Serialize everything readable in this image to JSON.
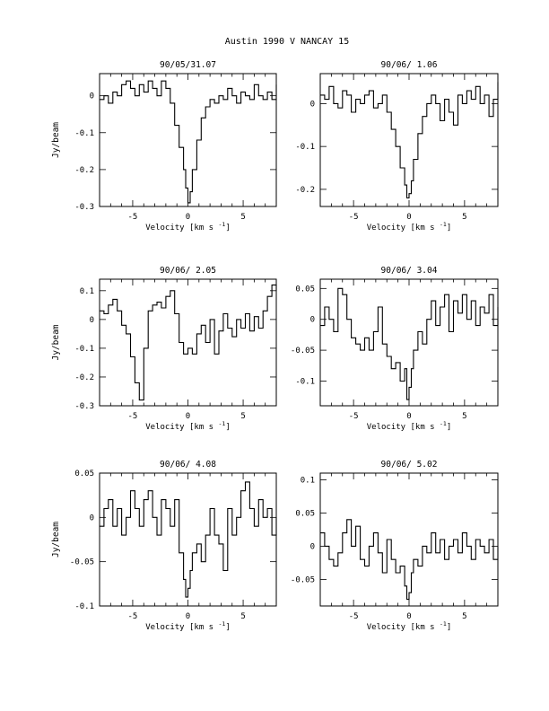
{
  "page": {
    "title": "Austin 1990 V    NANCAY     15"
  },
  "chart_data": [
    {
      "type": "line",
      "title": "90/05/31.07",
      "xlabel": "Velocity [km s",
      "xlabel_sup": "-1",
      "xlabel_end": "]",
      "ylabel": "Jy/beam",
      "xlim": [
        -8,
        8
      ],
      "ylim": [
        -0.3,
        0.06
      ],
      "xticks": [
        -5,
        0,
        5
      ],
      "yticks": [
        0,
        -0.1,
        -0.2,
        -0.3
      ],
      "ytick_labels": [
        "0",
        "-0.1",
        "-0.2",
        "-0.3"
      ],
      "series": [
        {
          "x": [
            -8.0,
            -7.6,
            -7.2,
            -6.8,
            -6.4,
            -6.0,
            -5.6,
            -5.2,
            -4.8,
            -4.4,
            -4.0,
            -3.6,
            -3.2,
            -2.8,
            -2.4,
            -2.0,
            -1.6,
            -1.2,
            -0.8,
            -0.4,
            -0.2,
            0.0,
            0.2,
            0.4,
            0.8,
            1.2,
            1.6,
            2.0,
            2.4,
            2.8,
            3.2,
            3.6,
            4.0,
            4.4,
            4.8,
            5.2,
            5.6,
            6.0,
            6.4,
            6.8,
            7.2,
            7.6,
            8.0
          ],
          "y": [
            -0.01,
            0.0,
            -0.02,
            0.01,
            0.0,
            0.03,
            0.04,
            0.02,
            0.0,
            0.03,
            0.01,
            0.04,
            0.02,
            0.0,
            0.04,
            0.02,
            -0.02,
            -0.08,
            -0.14,
            -0.2,
            -0.25,
            -0.29,
            -0.26,
            -0.2,
            -0.12,
            -0.06,
            -0.03,
            -0.01,
            -0.02,
            0.0,
            -0.01,
            0.02,
            0.0,
            -0.02,
            0.01,
            0.0,
            -0.01,
            0.03,
            0.0,
            -0.01,
            0.01,
            -0.01,
            0.03
          ]
        }
      ]
    },
    {
      "type": "line",
      "title": "90/06/ 1.06",
      "xlabel": "Velocity [km s",
      "xlabel_sup": "-1",
      "xlabel_end": "]",
      "ylabel": "",
      "xlim": [
        -8,
        8
      ],
      "ylim": [
        -0.24,
        0.07
      ],
      "xticks": [
        -5,
        0,
        5
      ],
      "yticks": [
        0,
        -0.1,
        -0.2
      ],
      "ytick_labels": [
        "0",
        "-0.1",
        "-0.2"
      ],
      "series": [
        {
          "x": [
            -8.0,
            -7.6,
            -7.2,
            -6.8,
            -6.4,
            -6.0,
            -5.6,
            -5.2,
            -4.8,
            -4.4,
            -4.0,
            -3.6,
            -3.2,
            -2.8,
            -2.4,
            -2.0,
            -1.6,
            -1.2,
            -0.8,
            -0.4,
            -0.2,
            0.0,
            0.2,
            0.4,
            0.8,
            1.2,
            1.6,
            2.0,
            2.4,
            2.8,
            3.2,
            3.6,
            4.0,
            4.4,
            4.8,
            5.2,
            5.6,
            6.0,
            6.4,
            6.8,
            7.2,
            7.6,
            8.0
          ],
          "y": [
            0.02,
            0.01,
            0.04,
            0.0,
            -0.01,
            0.03,
            0.02,
            -0.02,
            0.01,
            0.0,
            0.02,
            0.03,
            -0.01,
            0.0,
            0.02,
            -0.02,
            -0.06,
            -0.1,
            -0.15,
            -0.19,
            -0.22,
            -0.21,
            -0.18,
            -0.13,
            -0.07,
            -0.03,
            0.0,
            0.02,
            0.0,
            -0.04,
            0.01,
            -0.02,
            -0.05,
            0.02,
            0.0,
            0.03,
            0.01,
            0.04,
            0.0,
            0.02,
            -0.03,
            0.01,
            0.05
          ]
        }
      ]
    },
    {
      "type": "line",
      "title": "90/06/ 2.05",
      "xlabel": "Velocity [km s",
      "xlabel_sup": "-1",
      "xlabel_end": "]",
      "ylabel": "Jy/beam",
      "xlim": [
        -8,
        8
      ],
      "ylim": [
        -0.3,
        0.14
      ],
      "xticks": [
        -5,
        0,
        5
      ],
      "yticks": [
        0.1,
        0,
        -0.1,
        -0.2,
        -0.3
      ],
      "ytick_labels": [
        "0.1",
        "0",
        "-0.1",
        "-0.2",
        "-0.3"
      ],
      "series": [
        {
          "x": [
            -8.0,
            -7.6,
            -7.2,
            -6.8,
            -6.4,
            -6.0,
            -5.6,
            -5.2,
            -4.8,
            -4.4,
            -4.0,
            -3.6,
            -3.2,
            -2.8,
            -2.4,
            -2.0,
            -1.6,
            -1.2,
            -0.8,
            -0.4,
            0.0,
            0.4,
            0.8,
            1.2,
            1.6,
            2.0,
            2.4,
            2.8,
            3.2,
            3.6,
            4.0,
            4.4,
            4.8,
            5.2,
            5.6,
            6.0,
            6.4,
            6.8,
            7.2,
            7.6,
            8.0
          ],
          "y": [
            0.03,
            0.02,
            0.05,
            0.07,
            0.03,
            -0.02,
            -0.05,
            -0.13,
            -0.22,
            -0.28,
            -0.1,
            0.03,
            0.05,
            0.06,
            0.04,
            0.08,
            0.1,
            0.02,
            -0.08,
            -0.12,
            -0.1,
            -0.12,
            -0.05,
            -0.02,
            -0.08,
            0.0,
            -0.12,
            -0.04,
            0.02,
            -0.03,
            -0.06,
            0.0,
            -0.03,
            0.02,
            -0.04,
            0.01,
            -0.03,
            0.03,
            0.08,
            0.12,
            0.1
          ]
        }
      ]
    },
    {
      "type": "line",
      "title": "90/06/ 3.04",
      "xlabel": "Velocity [km s",
      "xlabel_sup": "-1",
      "xlabel_end": "]",
      "ylabel": "",
      "xlim": [
        -8,
        8
      ],
      "ylim": [
        -0.14,
        0.065
      ],
      "xticks": [
        -5,
        0,
        5
      ],
      "yticks": [
        0.05,
        0,
        -0.05,
        -0.1
      ],
      "ytick_labels": [
        "0.05",
        "0",
        "-0.05",
        "-0.1"
      ],
      "series": [
        {
          "x": [
            -8.0,
            -7.6,
            -7.2,
            -6.8,
            -6.4,
            -6.0,
            -5.6,
            -5.2,
            -4.8,
            -4.4,
            -4.0,
            -3.6,
            -3.2,
            -2.8,
            -2.4,
            -2.0,
            -1.6,
            -1.2,
            -0.8,
            -0.4,
            -0.2,
            0.0,
            0.2,
            0.4,
            0.8,
            1.2,
            1.6,
            2.0,
            2.4,
            2.8,
            3.2,
            3.6,
            4.0,
            4.4,
            4.8,
            5.2,
            5.6,
            6.0,
            6.4,
            6.8,
            7.2,
            7.6,
            8.0
          ],
          "y": [
            -0.01,
            0.02,
            0.0,
            -0.02,
            0.05,
            0.04,
            0.0,
            -0.03,
            -0.04,
            -0.05,
            -0.03,
            -0.05,
            -0.02,
            0.02,
            -0.04,
            -0.06,
            -0.08,
            -0.07,
            -0.1,
            -0.08,
            -0.13,
            -0.11,
            -0.08,
            -0.05,
            -0.02,
            -0.04,
            0.0,
            0.03,
            -0.01,
            0.02,
            0.04,
            -0.02,
            0.03,
            0.01,
            0.04,
            0.0,
            0.03,
            -0.01,
            0.02,
            0.01,
            0.04,
            -0.01,
            0.02
          ]
        }
      ]
    },
    {
      "type": "line",
      "title": "90/06/ 4.08",
      "xlabel": "Velocity [km s",
      "xlabel_sup": "-1",
      "xlabel_end": "]",
      "ylabel": "Jy/beam",
      "xlim": [
        -8,
        8
      ],
      "ylim": [
        -0.1,
        0.05
      ],
      "xticks": [
        -5,
        0,
        5
      ],
      "yticks": [
        0.05,
        0,
        -0.05,
        -0.1
      ],
      "ytick_labels": [
        "0.05",
        "0",
        "-0.05",
        "-0.1"
      ],
      "series": [
        {
          "x": [
            -8.0,
            -7.6,
            -7.2,
            -6.8,
            -6.4,
            -6.0,
            -5.6,
            -5.2,
            -4.8,
            -4.4,
            -4.0,
            -3.6,
            -3.2,
            -2.8,
            -2.4,
            -2.0,
            -1.6,
            -1.2,
            -0.8,
            -0.4,
            -0.2,
            0.0,
            0.2,
            0.4,
            0.8,
            1.2,
            1.6,
            2.0,
            2.4,
            2.8,
            3.2,
            3.6,
            4.0,
            4.4,
            4.8,
            5.2,
            5.6,
            6.0,
            6.4,
            6.8,
            7.2,
            7.6,
            8.0
          ],
          "y": [
            -0.01,
            0.01,
            0.02,
            -0.01,
            0.01,
            -0.02,
            0.0,
            0.03,
            0.01,
            -0.01,
            0.02,
            0.03,
            0.0,
            -0.02,
            0.02,
            0.01,
            -0.01,
            0.02,
            -0.04,
            -0.07,
            -0.09,
            -0.08,
            -0.06,
            -0.04,
            -0.03,
            -0.05,
            -0.02,
            0.01,
            -0.02,
            -0.03,
            -0.06,
            0.01,
            -0.02,
            0.0,
            0.03,
            0.04,
            0.01,
            -0.01,
            0.02,
            0.0,
            0.01,
            -0.02,
            0.0
          ]
        }
      ]
    },
    {
      "type": "line",
      "title": "90/06/ 5.02",
      "xlabel": "Velocity [km s",
      "xlabel_sup": "-1",
      "xlabel_end": "]",
      "ylabel": "",
      "xlim": [
        -8,
        8
      ],
      "ylim": [
        -0.09,
        0.11
      ],
      "xticks": [
        -5,
        0,
        5
      ],
      "yticks": [
        0.1,
        0.05,
        0,
        -0.05
      ],
      "ytick_labels": [
        "0.1",
        "0.05",
        "0",
        "-0.05"
      ],
      "series": [
        {
          "x": [
            -8.0,
            -7.6,
            -7.2,
            -6.8,
            -6.4,
            -6.0,
            -5.6,
            -5.2,
            -4.8,
            -4.4,
            -4.0,
            -3.6,
            -3.2,
            -2.8,
            -2.4,
            -2.0,
            -1.6,
            -1.2,
            -0.8,
            -0.4,
            -0.2,
            0.0,
            0.2,
            0.4,
            0.8,
            1.2,
            1.6,
            2.0,
            2.4,
            2.8,
            3.2,
            3.6,
            4.0,
            4.4,
            4.8,
            5.2,
            5.6,
            6.0,
            6.4,
            6.8,
            7.2,
            7.6,
            8.0
          ],
          "y": [
            0.02,
            0.0,
            -0.02,
            -0.03,
            -0.01,
            0.02,
            0.04,
            0.0,
            0.03,
            -0.02,
            -0.03,
            0.0,
            0.02,
            -0.01,
            -0.04,
            0.01,
            -0.02,
            -0.04,
            -0.03,
            -0.06,
            -0.08,
            -0.07,
            -0.04,
            -0.02,
            -0.03,
            0.0,
            -0.01,
            0.02,
            -0.01,
            0.01,
            -0.02,
            0.0,
            0.01,
            -0.01,
            0.02,
            0.0,
            -0.02,
            0.01,
            0.0,
            -0.01,
            0.01,
            -0.02,
            0.0
          ]
        }
      ]
    }
  ]
}
